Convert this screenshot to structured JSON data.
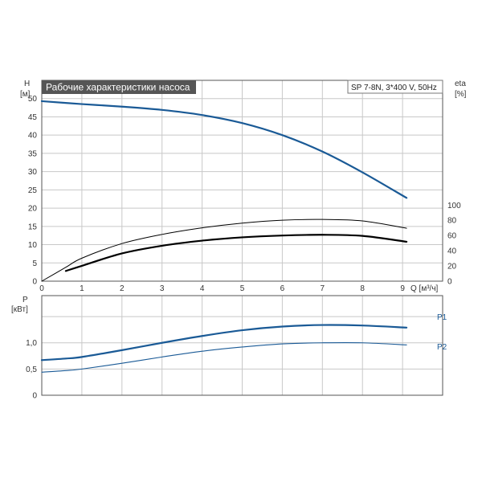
{
  "title": "Рабочие характеристики насоса",
  "model": "SP 7-8N, 3*400 V, 50Hz",
  "colors": {
    "grid": "#c8c8c8",
    "frame": "#555555",
    "title_bg": "#555555",
    "blue": "#1a5a96",
    "black": "#000000"
  },
  "chart_data": [
    {
      "type": "line",
      "name": "head-efficiency",
      "x_unit": "Q [м³/ч]",
      "xlim": [
        0,
        10
      ],
      "x_ticks": [
        "0",
        "1",
        "2",
        "3",
        "4",
        "5",
        "6",
        "7",
        "8",
        "9"
      ],
      "left_axis": {
        "label": "H",
        "unit": "[м]",
        "lim": [
          0,
          55
        ],
        "ticks": [
          "0",
          "5",
          "10",
          "15",
          "20",
          "25",
          "30",
          "35",
          "40",
          "45",
          "50"
        ]
      },
      "right_axis": {
        "label": "eta",
        "unit": "[%]",
        "lim": [
          0,
          264
        ],
        "ticks": [
          "0",
          "20",
          "40",
          "60",
          "80",
          "100"
        ]
      },
      "grid": true,
      "series": [
        {
          "id": "H",
          "axis": "left",
          "style": "blue-bold",
          "x": [
            0,
            1,
            2,
            3,
            4,
            5,
            6,
            7,
            8,
            9.1
          ],
          "y": [
            49.3,
            48.5,
            47.8,
            46.9,
            45.5,
            43.3,
            40.0,
            35.5,
            29.8,
            22.8
          ]
        },
        {
          "id": "eta-upper",
          "axis": "left",
          "style": "black-thin",
          "x": [
            0,
            0.6,
            1,
            2,
            3,
            4,
            5,
            6,
            7,
            8,
            9.1
          ],
          "y": [
            0,
            3.8,
            6.3,
            10.3,
            12.8,
            14.6,
            15.9,
            16.7,
            16.9,
            16.5,
            14.5
          ]
        },
        {
          "id": "eta-lower",
          "axis": "left",
          "style": "black-bold",
          "x": [
            0.6,
            1,
            2,
            3,
            4,
            5,
            6,
            7,
            8,
            9.1
          ],
          "y": [
            2.8,
            4.2,
            7.6,
            9.7,
            11.1,
            12.0,
            12.5,
            12.7,
            12.4,
            10.8
          ]
        }
      ]
    },
    {
      "type": "line",
      "name": "power",
      "xlim": [
        0,
        10
      ],
      "left_axis": {
        "label": "P",
        "unit": "[кВт]",
        "lim": [
          0,
          1.9
        ],
        "ticks": [
          "0",
          "0,5",
          "1,0"
        ],
        "tick_values": [
          0,
          0.5,
          1.0
        ]
      },
      "grid": true,
      "series": [
        {
          "id": "P1",
          "name": "P1",
          "style": "blue-bold",
          "x": [
            0,
            0.6,
            1,
            2,
            3,
            4,
            5,
            6,
            7,
            8,
            9.1
          ],
          "y": [
            0.67,
            0.7,
            0.73,
            0.86,
            1.0,
            1.13,
            1.24,
            1.31,
            1.34,
            1.33,
            1.29
          ]
        },
        {
          "id": "P2",
          "name": "P2",
          "style": "blue-thin",
          "x": [
            0,
            0.6,
            1,
            2,
            3,
            4,
            5,
            6,
            7,
            8,
            9.1
          ],
          "y": [
            0.44,
            0.47,
            0.5,
            0.61,
            0.73,
            0.84,
            0.92,
            0.98,
            1.0,
            1.0,
            0.96
          ]
        }
      ]
    }
  ]
}
